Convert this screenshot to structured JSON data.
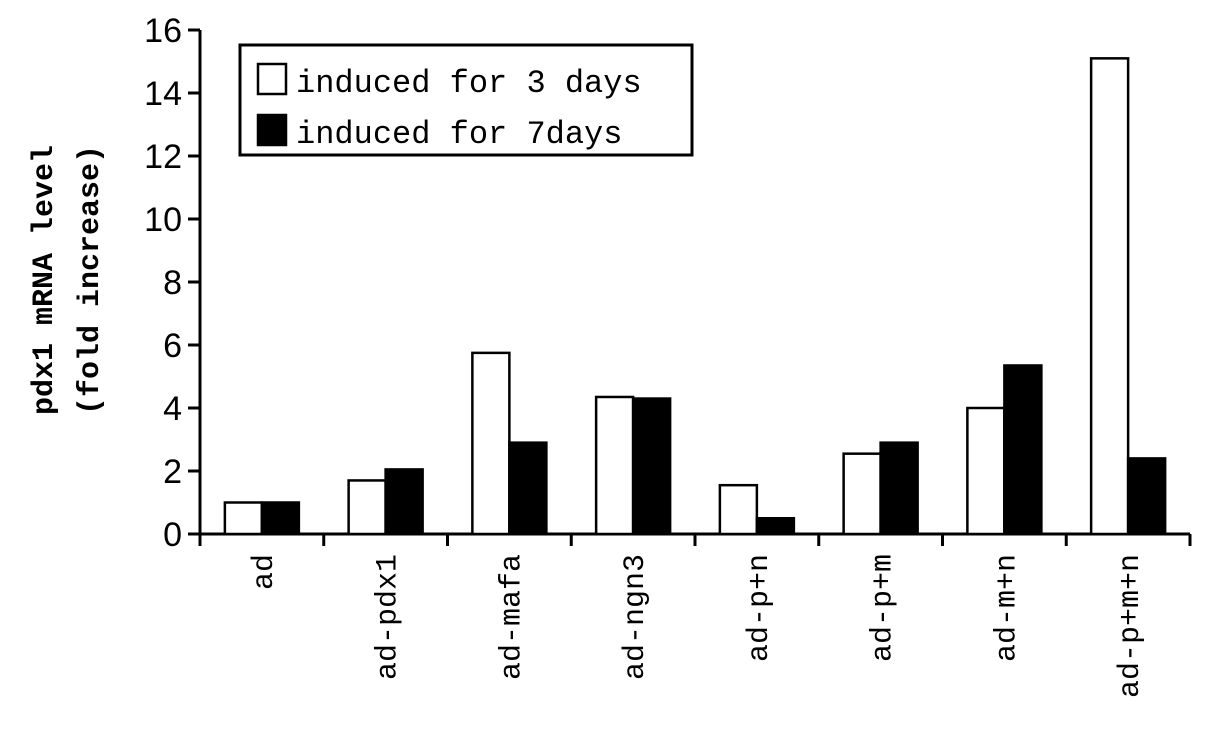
{
  "chart_data": {
    "type": "bar",
    "ylabel_line1": "pdx1 mRNA level",
    "ylabel_line2": "(fold increase)",
    "xlabel": "",
    "ylim": [
      0,
      16
    ],
    "yticks": [
      0,
      2,
      4,
      6,
      8,
      10,
      12,
      14,
      16
    ],
    "categories": [
      "ad",
      "ad-pdx1",
      "ad-mafa",
      "ad-ngn3",
      "ad-p+n",
      "ad-p+m",
      "ad-m+n",
      "ad-p+m+n"
    ],
    "series": [
      {
        "name": "induced for 3 days",
        "color": "#ffffff",
        "values": [
          1.0,
          1.7,
          5.75,
          4.35,
          1.55,
          2.55,
          4.0,
          15.1
        ]
      },
      {
        "name": "induced for 7days",
        "color": "#000000",
        "values": [
          1.0,
          2.05,
          2.9,
          4.3,
          0.5,
          2.9,
          5.35,
          2.4
        ]
      }
    ],
    "legend_position": "top-left",
    "grid": false
  }
}
